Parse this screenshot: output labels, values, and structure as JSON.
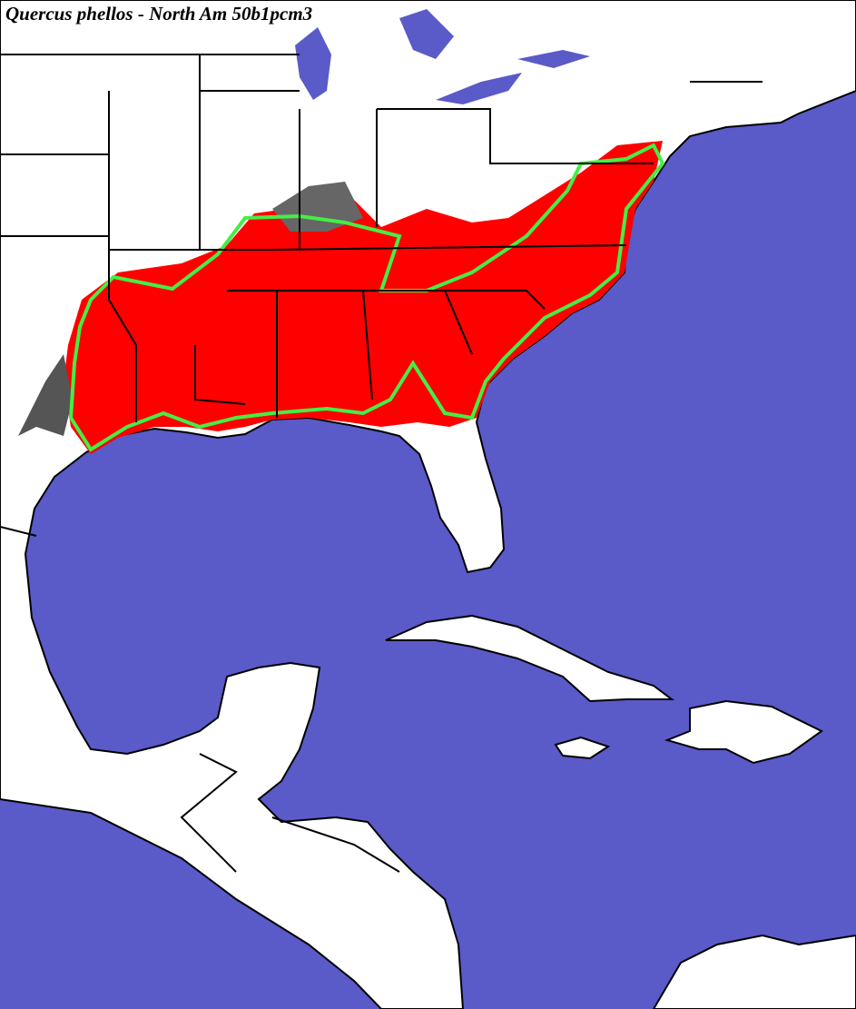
{
  "title": "Quercus phellos - North Am 50b1pcm3"
}
